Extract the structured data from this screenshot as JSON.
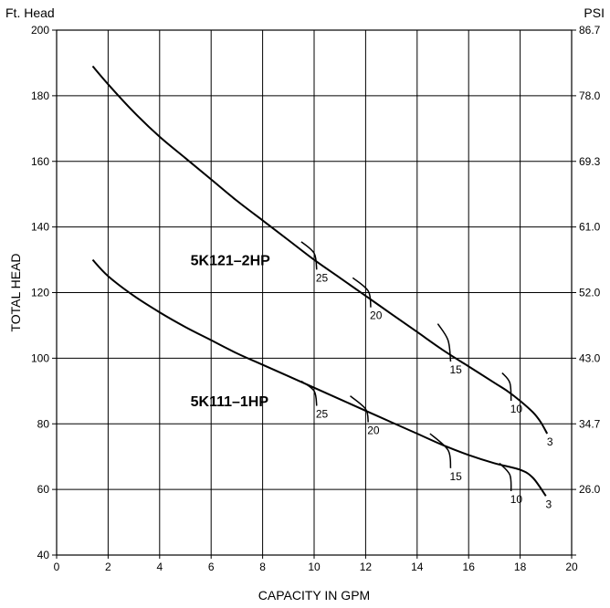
{
  "chart_data": {
    "type": "line",
    "xlabel": "CAPACITY IN GPM",
    "ylabel": "TOTAL HEAD",
    "y_unit_label": "Ft. Head",
    "y2_unit_label": "PSI",
    "xlim": [
      0,
      20
    ],
    "ylim": [
      40,
      200
    ],
    "grid": true,
    "x_ticks": [
      0,
      2,
      4,
      6,
      8,
      10,
      12,
      14,
      16,
      18,
      20
    ],
    "y_ticks": [
      40,
      60,
      80,
      100,
      120,
      140,
      160,
      180,
      200
    ],
    "y2_ticks": [
      "",
      "26.0",
      "34.7",
      "43.0",
      "52.0",
      "61.0",
      "69.3",
      "78.0",
      "86.7"
    ],
    "series": [
      {
        "name": "5K121–2HP",
        "x": [
          1.4,
          2,
          3,
          4,
          5,
          6,
          7,
          8,
          9,
          10,
          11,
          12,
          13,
          14,
          15,
          16,
          17,
          17.5,
          18,
          18.5,
          18.8,
          19.05
        ],
        "y": [
          189,
          183.5,
          175,
          167.5,
          161,
          154.5,
          148,
          142,
          136,
          130,
          124.5,
          119,
          113.5,
          108,
          102.5,
          97.5,
          92.5,
          90,
          87,
          83.5,
          80.5,
          77
        ],
        "branches": [
          {
            "label": "25",
            "x": [
              9.5,
              10.0,
              10.1
            ],
            "y": [
              135.5,
              132,
              127
            ]
          },
          {
            "label": "20",
            "x": [
              11.5,
              12.1,
              12.2
            ],
            "y": [
              124.5,
              120.5,
              115.5
            ]
          },
          {
            "label": "15",
            "x": [
              14.8,
              15.2,
              15.3
            ],
            "y": [
              110.5,
              105.5,
              99
            ]
          },
          {
            "label": "10",
            "x": [
              17.3,
              17.6,
              17.65
            ],
            "y": [
              95.5,
              92.5,
              87
            ]
          }
        ],
        "end_label": "3"
      },
      {
        "name": "5K111–1HP",
        "x": [
          1.4,
          2,
          3,
          4,
          5,
          6,
          7,
          8,
          9,
          10,
          11,
          12,
          13,
          14,
          15,
          16,
          17,
          18,
          18.5,
          19.0
        ],
        "y": [
          130,
          125,
          119,
          114,
          109.5,
          105.5,
          101.5,
          98,
          94.5,
          91,
          87.5,
          84,
          80.5,
          77,
          73.5,
          70.5,
          68,
          66,
          63.5,
          58
        ],
        "branches": [
          {
            "label": "25",
            "x": [
              9.5,
              10.0,
              10.1
            ],
            "y": [
              93,
              90,
              85.5
            ]
          },
          {
            "label": "20",
            "x": [
              11.4,
              12.0,
              12.1
            ],
            "y": [
              88.5,
              84.5,
              80.5
            ]
          },
          {
            "label": "15",
            "x": [
              14.5,
              15.2,
              15.3
            ],
            "y": [
              77,
              72,
              66.5
            ]
          },
          {
            "label": "10",
            "x": [
              17.2,
              17.6,
              17.65
            ],
            "y": [
              68,
              64.5,
              59.5
            ]
          }
        ],
        "end_label": "3"
      }
    ]
  }
}
